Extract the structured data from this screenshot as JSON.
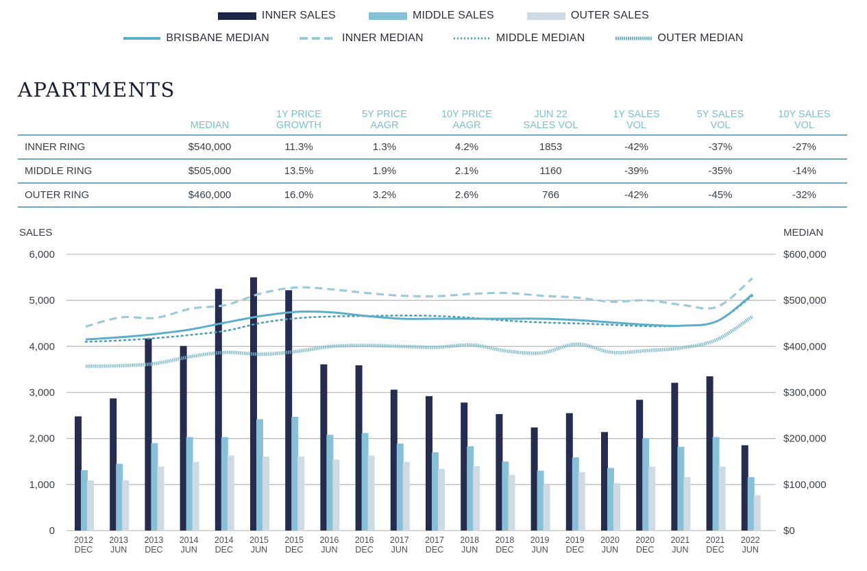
{
  "legend": {
    "bars": [
      {
        "label": "INNER SALES",
        "color": "#1f2547"
      },
      {
        "label": "MIDDLE SALES",
        "color": "#86c1d8"
      },
      {
        "label": "OUTER SALES",
        "color": "#cfdbe2"
      }
    ],
    "lines": [
      {
        "label": "BRISBANE MEDIAN",
        "style": "solid",
        "color": "#5aaec8"
      },
      {
        "label": "INNER MEDIAN",
        "style": "dashed",
        "color": "#9ccadb"
      },
      {
        "label": "MIDDLE MEDIAN",
        "style": "dotted",
        "color": "#4d9fb5"
      },
      {
        "label": "OUTER MEDIAN",
        "style": "hatched",
        "color": "#6eb3c8"
      }
    ]
  },
  "section_title": "APARTMENTS",
  "table": {
    "headers": [
      "",
      "MEDIAN",
      "1Y PRICE GROWTH",
      "5Y PRICE AAGR",
      "10Y PRICE AAGR",
      "JUN 22 SALES VOL",
      "1Y SALES VOL",
      "5Y SALES VOL",
      "10Y SALES VOL"
    ],
    "header_lines": [
      [
        "",
        ""
      ],
      [
        "MEDIAN",
        ""
      ],
      [
        "1Y PRICE",
        "GROWTH"
      ],
      [
        "5Y PRICE",
        "AAGR"
      ],
      [
        "10Y PRICE",
        "AAGR"
      ],
      [
        "JUN 22",
        "SALES VOL"
      ],
      [
        "1Y SALES",
        "VOL"
      ],
      [
        "5Y SALES",
        "VOL"
      ],
      [
        "10Y SALES",
        "VOL"
      ]
    ],
    "rows": [
      [
        "INNER RING",
        "$540,000",
        "11.3%",
        "1.3%",
        "4.2%",
        "1853",
        "-42%",
        "-37%",
        "-27%"
      ],
      [
        "MIDDLE RING",
        "$505,000",
        "13.5%",
        "1.9%",
        "2.1%",
        "1160",
        "-39%",
        "-35%",
        "-14%"
      ],
      [
        "OUTER RING",
        "$460,000",
        "16.0%",
        "3.2%",
        "2.6%",
        "766",
        "-42%",
        "-45%",
        "-32%"
      ]
    ]
  },
  "chart_data": {
    "type": "bar",
    "title": "APARTMENTS",
    "xlabel": "",
    "ylabel": "SALES",
    "y2label": "MEDIAN",
    "ylim": [
      0,
      6000
    ],
    "y2lim": [
      0,
      600000
    ],
    "yticks": [
      "0",
      "1,000",
      "2,000",
      "3,000",
      "4,000",
      "5,000",
      "6,000"
    ],
    "y2ticks": [
      "$0",
      "$100,000",
      "$200,000",
      "$300,000",
      "$400,000",
      "$500,000",
      "$600,000"
    ],
    "grid": true,
    "legend_position": "top-center",
    "categories": [
      [
        "2012",
        "DEC"
      ],
      [
        "2013",
        "JUN"
      ],
      [
        "2013",
        "DEC"
      ],
      [
        "2014",
        "JUN"
      ],
      [
        "2014",
        "DEC"
      ],
      [
        "2015",
        "JUN"
      ],
      [
        "2015",
        "DEC"
      ],
      [
        "2016",
        "JUN"
      ],
      [
        "2016",
        "DEC"
      ],
      [
        "2017",
        "JUN"
      ],
      [
        "2017",
        "DEC"
      ],
      [
        "2018",
        "JUN"
      ],
      [
        "2018",
        "DEC"
      ],
      [
        "2019",
        "JUN"
      ],
      [
        "2019",
        "DEC"
      ],
      [
        "2020",
        "JUN"
      ],
      [
        "2020",
        "DEC"
      ],
      [
        "2021",
        "JUN"
      ],
      [
        "2021",
        "DEC"
      ],
      [
        "2022",
        "JUN"
      ]
    ],
    "series": [
      {
        "name": "INNER SALES",
        "kind": "bar",
        "axis": "left",
        "values": [
          2480,
          2870,
          4170,
          4010,
          5250,
          5500,
          5220,
          3610,
          3590,
          3060,
          2920,
          2780,
          2530,
          2240,
          2550,
          2140,
          2840,
          3210,
          3350,
          1853
        ]
      },
      {
        "name": "MIDDLE SALES",
        "kind": "bar",
        "axis": "left",
        "values": [
          1310,
          1450,
          1900,
          2030,
          2030,
          2420,
          2470,
          2080,
          2120,
          1890,
          1700,
          1830,
          1500,
          1300,
          1590,
          1360,
          2000,
          1820,
          2030,
          1160
        ]
      },
      {
        "name": "OUTER SALES",
        "kind": "bar",
        "axis": "left",
        "values": [
          1090,
          1090,
          1390,
          1490,
          1630,
          1610,
          1610,
          1540,
          1630,
          1490,
          1340,
          1400,
          1210,
          1000,
          1270,
          1030,
          1390,
          1160,
          1390,
          766
        ]
      },
      {
        "name": "BRISBANE MEDIAN",
        "kind": "line",
        "axis": "right",
        "values": [
          415000,
          420000,
          427000,
          437000,
          452000,
          466000,
          475000,
          474000,
          466000,
          460000,
          460000,
          460000,
          460000,
          460000,
          457000,
          452000,
          447000,
          445000,
          455000,
          513000
        ]
      },
      {
        "name": "INNER MEDIAN",
        "kind": "line",
        "axis": "right",
        "values": [
          443000,
          463000,
          462000,
          482000,
          490000,
          515000,
          528000,
          524000,
          516000,
          510000,
          509000,
          514000,
          516000,
          510000,
          506000,
          497000,
          500000,
          490000,
          486000,
          548000
        ]
      },
      {
        "name": "MIDDLE MEDIAN",
        "kind": "line",
        "axis": "right",
        "values": [
          410000,
          413000,
          418000,
          425000,
          434000,
          451000,
          461000,
          465000,
          466000,
          467000,
          466000,
          462000,
          456000,
          452000,
          450000,
          447000,
          444000,
          445000,
          455000,
          510000
        ]
      },
      {
        "name": "OUTER MEDIAN",
        "kind": "line",
        "axis": "right",
        "values": [
          357000,
          358000,
          363000,
          378000,
          387000,
          383000,
          389000,
          400000,
          402000,
          400000,
          398000,
          403000,
          390000,
          386000,
          405000,
          387000,
          391000,
          397000,
          415000,
          465000
        ]
      }
    ]
  },
  "axis_titles": {
    "left": "SALES",
    "right": "MEDIAN"
  }
}
